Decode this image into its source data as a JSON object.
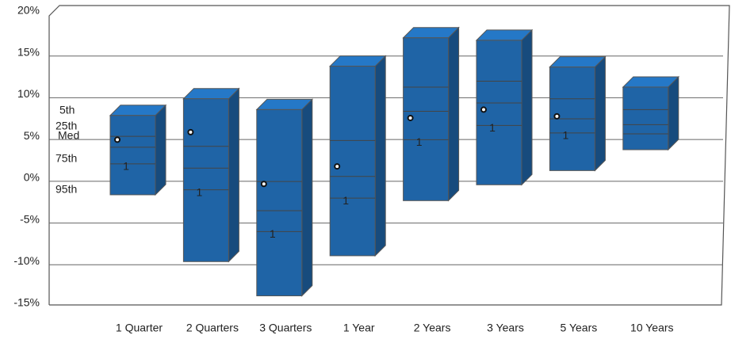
{
  "chart_data": {
    "type": "floating-box",
    "categories": [
      "1 Quarter",
      "2 Quarters",
      "3 Quarters",
      "1 Year",
      "2 Years",
      "3 Years",
      "5 Years",
      "10 Years"
    ],
    "series": [
      {
        "name": "5th",
        "values": [
          7.5,
          9.5,
          8.2,
          13.4,
          16.8,
          16.5,
          13.3,
          10.9
        ]
      },
      {
        "name": "25th",
        "values": [
          5.0,
          3.8,
          -0.4,
          4.5,
          10.9,
          11.6,
          9.5,
          8.2
        ]
      },
      {
        "name": "Med",
        "values": [
          3.7,
          1.2,
          -3.9,
          0.2,
          8.0,
          9.0,
          7.1,
          6.4
        ]
      },
      {
        "name": "75th",
        "values": [
          1.7,
          -1.4,
          -6.4,
          -2.4,
          4.6,
          6.3,
          5.4,
          5.3
        ]
      },
      {
        "name": "95th",
        "values": [
          -2.0,
          -10.0,
          -14.1,
          -9.3,
          -2.7,
          -0.8,
          0.9,
          3.4
        ]
      }
    ],
    "markers": {
      "values": [
        4.6,
        5.5,
        -0.7,
        1.4,
        7.2,
        8.2,
        7.4,
        null
      ],
      "labels": [
        "1",
        "1",
        "1",
        "1",
        "1",
        "1",
        "1",
        null
      ]
    },
    "color": "#1f64a6",
    "ylim": [
      -15,
      20
    ],
    "yticks": [
      {
        "value": -15,
        "label": "-15%"
      },
      {
        "value": -10,
        "label": "-10%"
      },
      {
        "value": -5,
        "label": "-5%"
      },
      {
        "value": 0,
        "label": "0%"
      },
      {
        "value": 5,
        "label": "5%"
      },
      {
        "value": 10,
        "label": "10%"
      },
      {
        "value": 15,
        "label": "15%"
      },
      {
        "value": 20,
        "label": "20%"
      }
    ],
    "grid": true
  }
}
